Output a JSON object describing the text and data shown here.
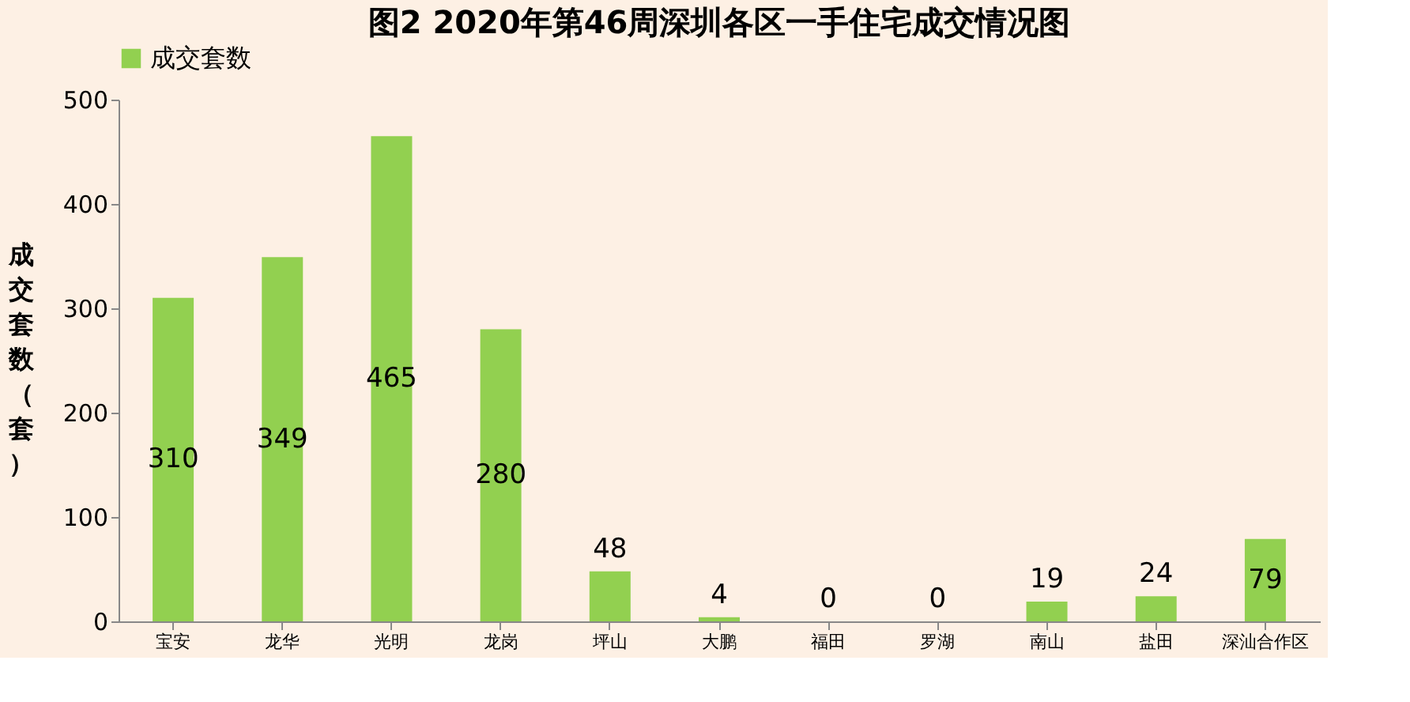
{
  "chart_data": {
    "type": "bar",
    "title": "图2  2020年第46周深圳各区一手住宅成交情况图",
    "ylabel": "成交套数（套）",
    "categories": [
      "宝安",
      "龙华",
      "光明",
      "龙岗",
      "坪山",
      "大鹏",
      "福田",
      "罗湖",
      "南山",
      "盐田",
      "深汕合作区"
    ],
    "series": [
      {
        "name": "成交套数",
        "color": "#92d050",
        "values": [
          310,
          349,
          465,
          280,
          48,
          4,
          0,
          0,
          19,
          24,
          79
        ]
      }
    ],
    "ylim": [
      0,
      500
    ],
    "yticks": [
      0,
      100,
      200,
      300,
      400,
      500
    ],
    "data_labels": true,
    "legend": "top",
    "grid": false
  }
}
